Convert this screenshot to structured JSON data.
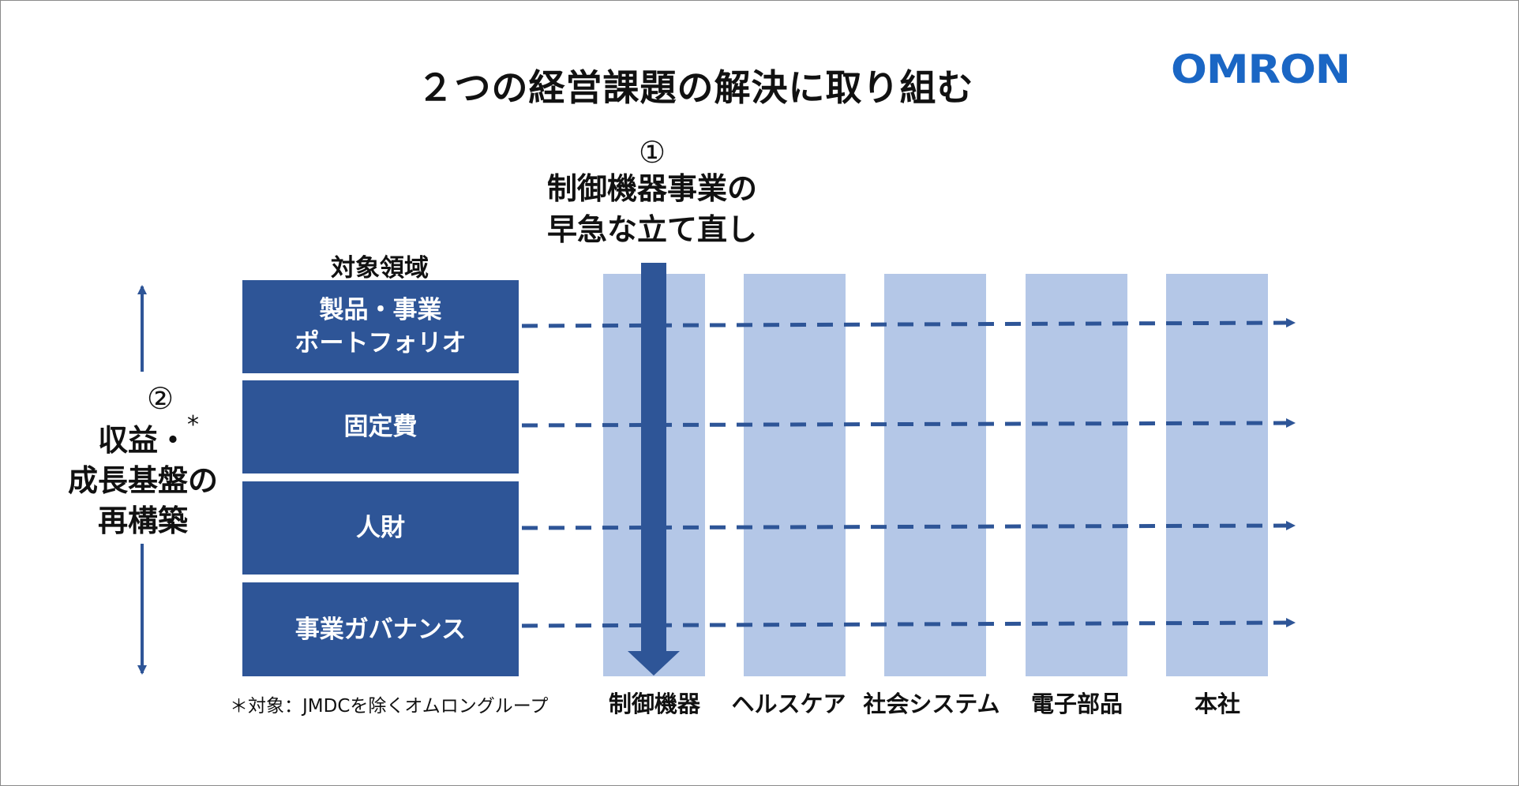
{
  "title": "２つの経営課題の解決に取り組む",
  "logo": "OMRON",
  "challenge1": {
    "number": "①",
    "lines": [
      "制御機器事業の",
      "早急な立て直し"
    ]
  },
  "challenge2": {
    "number": "②",
    "lines": [
      "収益・",
      "成長基盤の",
      "再構築"
    ],
    "asterisk": "*"
  },
  "areas": {
    "header": "対象領域",
    "items": [
      {
        "lines": [
          "製品・事業",
          "ポートフォリオ"
        ]
      },
      {
        "lines": [
          "固定費"
        ]
      },
      {
        "lines": [
          "人財"
        ]
      },
      {
        "lines": [
          "事業ガバナンス"
        ]
      }
    ]
  },
  "segments": [
    "制御機器",
    "ヘルスケア",
    "社会システム",
    "電子部品",
    "本社"
  ],
  "footnote": "＊対象：JMDCを除くオムロングループ",
  "colors": {
    "box": "#2e5597",
    "column": "#b4c7e7",
    "logo": "#1a66c4",
    "arrow": "#2e5597"
  }
}
